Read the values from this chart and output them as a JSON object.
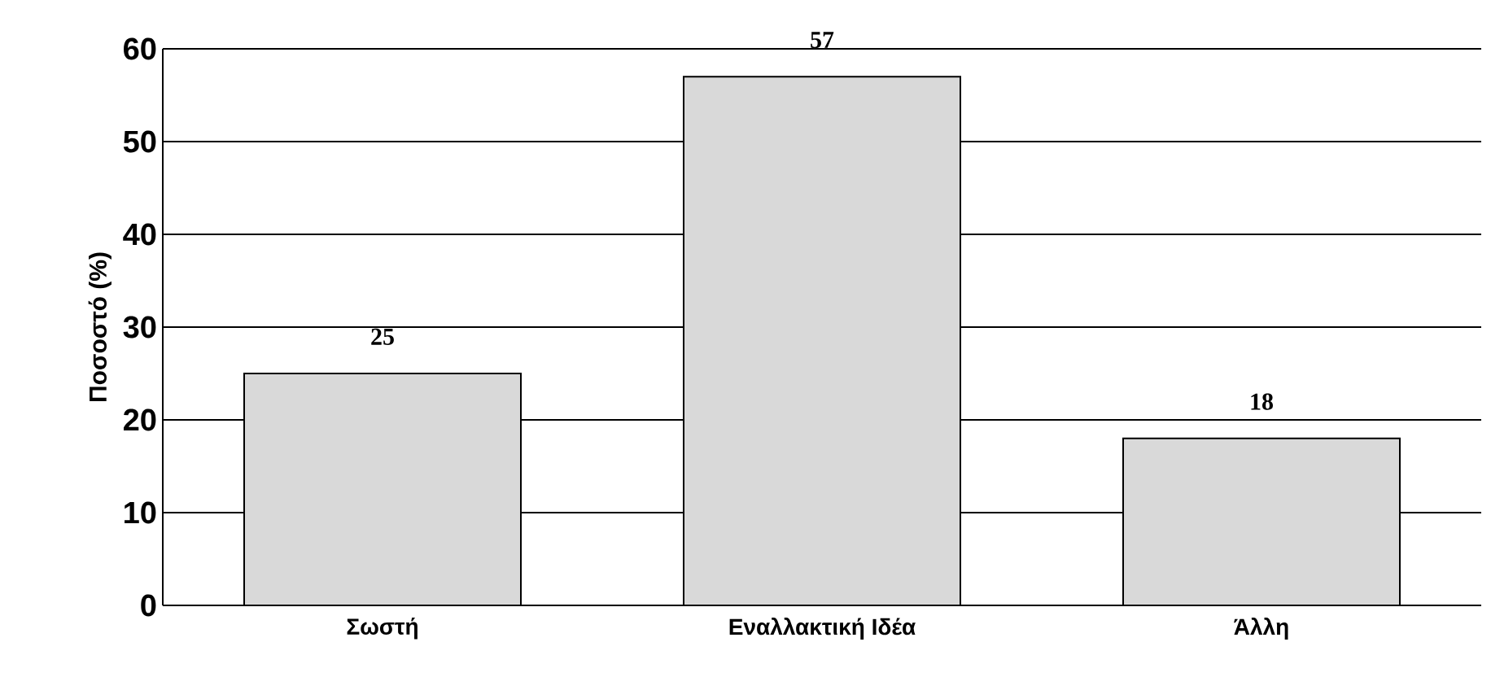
{
  "chart_data": {
    "type": "bar",
    "ylabel": "Ποσοστό (%)",
    "categories": [
      "Σωστή",
      "Εναλλακτική Ιδέα",
      "Άλλη"
    ],
    "values": [
      25,
      57,
      18
    ],
    "color": "#d9d9d9",
    "ylim": [
      0,
      60
    ],
    "yticks": [
      0,
      10,
      20,
      30,
      40,
      50,
      60
    ],
    "grid": "y",
    "data_labels": true
  }
}
